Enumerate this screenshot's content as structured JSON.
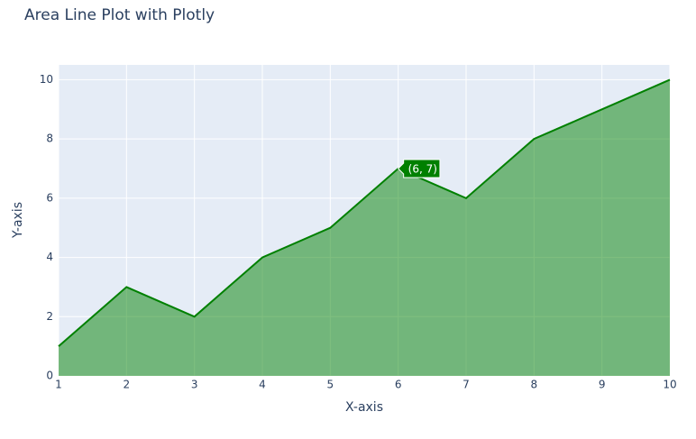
{
  "chart_data": {
    "type": "area",
    "title": "Area Line Plot with Plotly",
    "x_label": "X-axis",
    "y_label": "Y-axis",
    "x": [
      1,
      2,
      3,
      4,
      5,
      6,
      7,
      8,
      9,
      10
    ],
    "series": [
      {
        "color": "#008000",
        "values": [
          1,
          3,
          2,
          4,
          5,
          7,
          6,
          8,
          9,
          10
        ]
      }
    ],
    "xlim": [
      1,
      10
    ],
    "ylim": [
      0,
      10.5
    ],
    "xticks": [
      1,
      2,
      3,
      4,
      5,
      6,
      7,
      8,
      9,
      10
    ],
    "yticks": [
      0,
      2,
      4,
      6,
      8,
      10
    ],
    "grid": true,
    "hover_label": {
      "x": 6,
      "y": 7,
      "label": "(6, 7)"
    }
  }
}
